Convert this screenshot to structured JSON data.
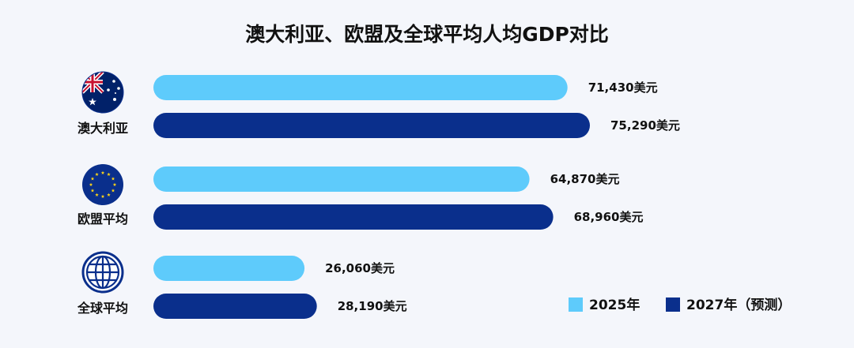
{
  "chart_data": {
    "type": "bar",
    "orientation": "horizontal",
    "title": "澳大利亚、欧盟及全球平均人均GDP对比",
    "categories": [
      "澳大利亚",
      "欧盟平均",
      "全球平均"
    ],
    "category_icons": [
      "australia-flag-icon",
      "eu-flag-icon",
      "globe-icon"
    ],
    "series": [
      {
        "name": "2025年",
        "values": [
          71430,
          64870,
          26060
        ],
        "value_labels": [
          "71,430美元",
          "64,870美元",
          "26,060美元"
        ],
        "color": "#5ecbfb"
      },
      {
        "name": "2027年（预测）",
        "values": [
          75290,
          68960,
          28190
        ],
        "value_labels": [
          "75,290美元",
          "68,960美元",
          "28,190美元"
        ],
        "color": "#0a2f8c"
      }
    ],
    "xlim": [
      0,
      80000
    ],
    "grid": false,
    "legend_position": "bottom-right"
  }
}
